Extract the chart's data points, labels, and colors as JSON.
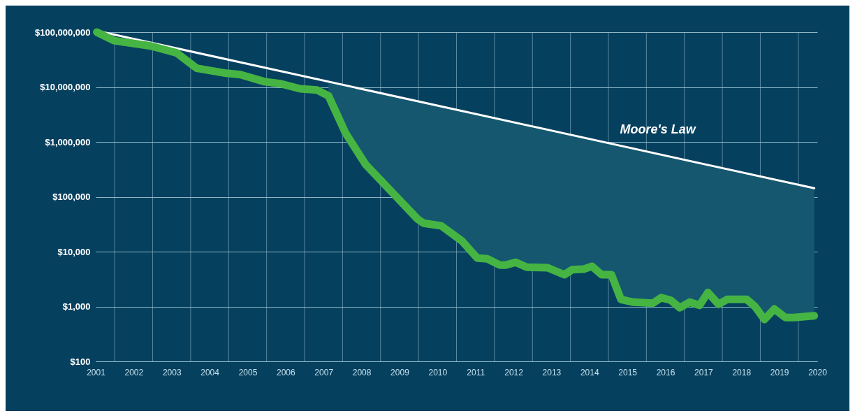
{
  "chart_data": {
    "type": "line",
    "log": "y",
    "grid": true,
    "legend": false,
    "xlim": [
      2001,
      2020
    ],
    "xticks": [
      2001,
      {
        "value": 2001.5,
        "label": null
      },
      2002,
      {
        "value": 2002.5,
        "label": null
      },
      2003,
      {
        "value": 2003.5,
        "label": null
      },
      2004,
      {
        "value": 2004.5,
        "label": null
      },
      2005,
      {
        "value": 2005.5,
        "label": null
      },
      2006,
      {
        "value": 2006.5,
        "label": null
      },
      2007,
      {
        "value": 2007.5,
        "label": null
      },
      2008,
      {
        "value": 2008.5,
        "label": null
      },
      2009,
      {
        "value": 2009.5,
        "label": null
      },
      2010,
      {
        "value": 2010.5,
        "label": null
      },
      2011,
      {
        "value": 2011.5,
        "label": null
      },
      2012,
      {
        "value": 2012.5,
        "label": null
      },
      2013,
      {
        "value": 2013.5,
        "label": null
      },
      2014,
      {
        "value": 2014.5,
        "label": null
      },
      2015,
      {
        "value": 2015.5,
        "label": null
      },
      2016,
      {
        "value": 2016.5,
        "label": null
      },
      2017,
      {
        "value": 2017.5,
        "label": null
      },
      2018,
      {
        "value": 2018.5,
        "label": null
      },
      2019,
      {
        "value": 2019.5,
        "label": null
      },
      2020
    ],
    "ylim": [
      100,
      100000000
    ],
    "yticks": [
      {
        "value": 100,
        "label": "$100"
      },
      {
        "value": 1000,
        "label": "$1,000"
      },
      {
        "value": 10000,
        "label": "$10,000"
      },
      {
        "value": 100000,
        "label": "$100,000"
      },
      {
        "value": 1000000,
        "label": "$1,000,000"
      },
      {
        "value": 10000000,
        "label": "$10,000,000"
      },
      {
        "value": 100000000,
        "label": "$100,000,000"
      }
    ],
    "series": [
      {
        "name": "Moore's Law",
        "color": "#ffffff",
        "x": [
          2001.19,
          2019.92
        ],
        "values": [
          100000000,
          143000
        ]
      },
      {
        "color": "#46b443",
        "x": [
          2001.03,
          2001.48,
          2002.45,
          2003.13,
          2003.66,
          2004.44,
          2004.81,
          2005.45,
          2005.87,
          2006.38,
          2006.83,
          2007.13,
          2007.58,
          2008.11,
          2008.86,
          2009.48,
          2009.63,
          2010.1,
          2010.65,
          2011.05,
          2011.31,
          2011.64,
          2011.8,
          2012.06,
          2012.35,
          2012.9,
          2013.34,
          2013.55,
          2013.85,
          2014.07,
          2014.32,
          2014.58,
          2014.83,
          2015.16,
          2015.67,
          2015.89,
          2016.14,
          2016.38,
          2016.64,
          2016.9,
          2017.12,
          2017.4,
          2017.63,
          2018.14,
          2018.36,
          2018.61,
          2018.87,
          2019.16,
          2019.38,
          2019.92
        ],
        "values": [
          100000000,
          70000000,
          56000000,
          42000000,
          22000000,
          17800000,
          16800000,
          12500000,
          11500000,
          9300000,
          8800000,
          6900000,
          1440000,
          386000,
          110000,
          39000,
          33000,
          29500,
          15500,
          7600,
          7400,
          5700,
          5700,
          6400,
          5200,
          5100,
          3800,
          4700,
          4800,
          5400,
          3800,
          3800,
          1350,
          1200,
          1150,
          1450,
          1300,
          950,
          1200,
          1050,
          1800,
          1100,
          1350,
          1350,
          1000,
          580,
          900,
          630,
          630,
          680
        ],
        "lower": [
          null,
          null,
          null,
          null,
          null,
          null,
          null,
          null,
          null,
          null,
          null,
          6900000,
          1440000,
          386000,
          110000,
          39000,
          33000,
          29500,
          15500,
          7600,
          7400,
          5700,
          5700,
          6400,
          5200,
          5100,
          3800,
          4700,
          4800,
          5400,
          3800,
          3800,
          1350,
          1200,
          1150,
          1450,
          1300,
          950,
          1200,
          1050,
          1800,
          1100,
          1350,
          1350,
          1000,
          580,
          900,
          630,
          630,
          680
        ],
        "upper": [
          null,
          null,
          null,
          null,
          null,
          null,
          null,
          null,
          null,
          null,
          null,
          12500000,
          10700000,
          8890000,
          6840000,
          5510000,
          5220000,
          4430000,
          3660000,
          3180000,
          2900000,
          2590000,
          2450000,
          2230000,
          2020000,
          1660000,
          1430000,
          1330000,
          1190000,
          1110000,
          1010000,
          925000,
          848000,
          755000,
          632000,
          585000,
          536000,
          493000,
          450000,
          411000,
          380000,
          345000,
          318000,
          266000,
          247000,
          226000,
          206000,
          186000,
          173000,
          143000
        ]
      }
    ]
  }
}
